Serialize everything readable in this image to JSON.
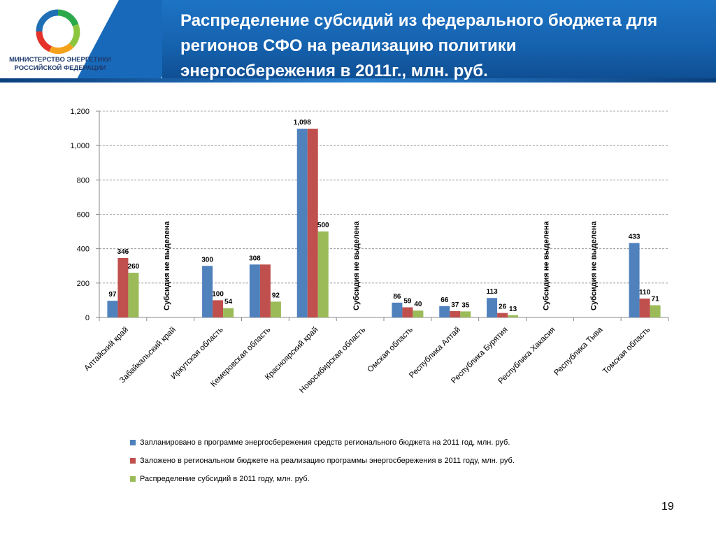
{
  "header": {
    "title": "Распределение субсидий  из федерального бюджета для\nрегионов СФО на реализацию политики\nэнергосбережения в 2011г., млн. руб.",
    "ministry": "МИНИСТЕРСТВО ЭНЕРГЕТИКИ\nРОССИЙСКОЙ ФЕДЕРАЦИИ",
    "logo_icon": "ministry-ring-logo-icon"
  },
  "page_number": "19",
  "colors": {
    "blue": "#4f81bd",
    "red": "#c0504d",
    "green": "#9bbb59",
    "banner": "#1d6ab8"
  },
  "chart_data": {
    "type": "bar",
    "title": "",
    "xlabel": "",
    "ylabel": "",
    "ylim": [
      0,
      1200
    ],
    "yticks": [
      "0",
      "200",
      "400",
      "600",
      "800",
      "1,000",
      "1,200"
    ],
    "ytick_values": [
      0,
      200,
      400,
      600,
      800,
      1000,
      1200
    ],
    "grid": true,
    "legend_position": "bottom",
    "categories": [
      "Алтайский край",
      "Забайкальский край",
      "Иркутская область",
      "Кемеровская область",
      "Красноярский край",
      "Новосибирская область",
      "Омская область",
      "Республика  Алтай",
      "Республика  Бурятия",
      "Республика  Хакасия",
      "Республика  Тыва",
      "Томская область"
    ],
    "series": [
      {
        "name": "Запланировано в программе энергосбережения средств регионального бюджета на 2011 год, млн. руб.",
        "color": "#4f81bd",
        "values": [
          97,
          null,
          300,
          308,
          1098,
          null,
          86,
          66,
          113,
          null,
          null,
          433
        ],
        "labels": [
          "97",
          "",
          "300",
          "308",
          "1,098",
          "",
          "86",
          "66",
          "113",
          "",
          "",
          "433"
        ]
      },
      {
        "name": "Заложено в региональном бюджете на реализацию программы энергосбережения в 2011 году, млн. руб.",
        "color": "#c0504d",
        "values": [
          346,
          null,
          100,
          308,
          1098,
          null,
          59,
          37,
          26,
          null,
          null,
          110
        ],
        "labels": [
          "346",
          "",
          "100",
          "",
          "",
          "",
          "59",
          "37",
          "26",
          "",
          "",
          "110"
        ]
      },
      {
        "name": "Распределение субсидий в 2011 году, млн. руб.",
        "color": "#9bbb59",
        "values": [
          260,
          null,
          54,
          92,
          500,
          null,
          40,
          35,
          13,
          null,
          null,
          71
        ],
        "labels": [
          "260",
          "",
          "54",
          "92",
          "500",
          "",
          "40",
          "35",
          "13",
          "",
          "",
          "71"
        ]
      }
    ],
    "annotations": [
      {
        "category_index": 1,
        "text": "Субсидия не выделена"
      },
      {
        "category_index": 5,
        "text": "Субсидия не выделена"
      },
      {
        "category_index": 9,
        "text": "Субсидия не выделена"
      },
      {
        "category_index": 10,
        "text": "Субсидия не выделена"
      }
    ]
  }
}
